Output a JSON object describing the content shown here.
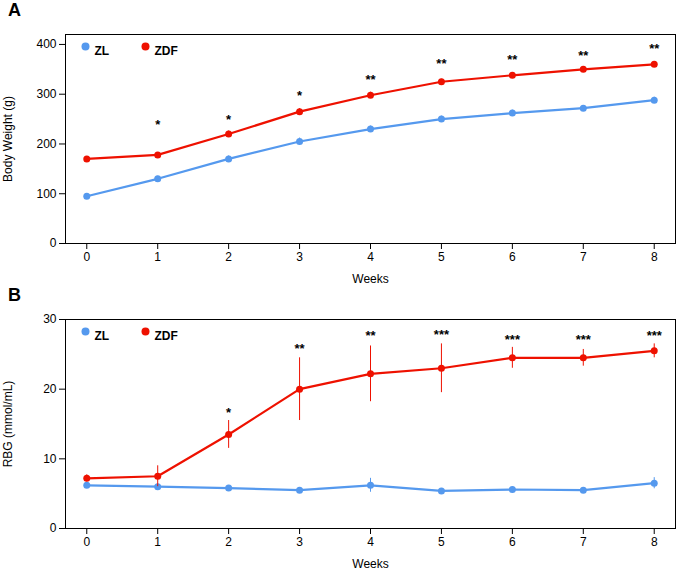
{
  "chart_data": [
    {
      "type": "line",
      "title": "A",
      "xlabel": "Weeks",
      "ylabel": "Body Weight (g)",
      "x": [
        0,
        1,
        2,
        3,
        4,
        5,
        6,
        7,
        8
      ],
      "series": [
        {
          "name": "ZL",
          "color": "#5599ee",
          "marker": "circle",
          "values": [
            95,
            130,
            170,
            205,
            230,
            250,
            262,
            272,
            288
          ],
          "errors": [
            4,
            5,
            6,
            7,
            6,
            6,
            6,
            5,
            6
          ]
        },
        {
          "name": "ZDF",
          "color": "#ee1100",
          "marker": "circle",
          "values": [
            170,
            178,
            220,
            265,
            298,
            325,
            338,
            350,
            360
          ],
          "errors": [
            4,
            4,
            6,
            6,
            6,
            5,
            5,
            5,
            5
          ]
        }
      ],
      "annotations": [
        {
          "x": 1,
          "y": 230,
          "text": "*"
        },
        {
          "x": 2,
          "y": 240,
          "text": "*"
        },
        {
          "x": 3,
          "y": 288,
          "text": "*"
        },
        {
          "x": 4,
          "y": 320,
          "text": "**"
        },
        {
          "x": 5,
          "y": 352,
          "text": "**"
        },
        {
          "x": 6,
          "y": 360,
          "text": "**"
        },
        {
          "x": 7,
          "y": 368,
          "text": "**"
        },
        {
          "x": 8,
          "y": 382,
          "text": "**"
        }
      ],
      "xlim": [
        -0.3,
        8.3
      ],
      "xticks": [
        0,
        1,
        2,
        3,
        4,
        5,
        6,
        7,
        8
      ],
      "ylim": [
        0,
        420
      ],
      "yticks": [
        0,
        100,
        200,
        300,
        400
      ],
      "legend": "upper left",
      "grid": false
    },
    {
      "type": "line",
      "title": "B",
      "xlabel": "Weeks",
      "ylabel": "RBG (mmol/mL)",
      "x": [
        0,
        1,
        2,
        3,
        4,
        5,
        6,
        7,
        8
      ],
      "series": [
        {
          "name": "ZL",
          "color": "#5599ee",
          "marker": "circle",
          "values": [
            6.2,
            6.0,
            5.8,
            5.5,
            6.2,
            5.4,
            5.6,
            5.5,
            6.5
          ],
          "errors": [
            0.3,
            0.3,
            0.3,
            0.3,
            1.0,
            0.3,
            0.3,
            0.3,
            0.8
          ]
        },
        {
          "name": "ZDF",
          "color": "#ee1100",
          "marker": "circle",
          "values": [
            7.2,
            7.5,
            13.5,
            20.0,
            22.2,
            23.0,
            24.5,
            24.5,
            25.5
          ],
          "errors": [
            0.5,
            1.5,
            2.0,
            4.5,
            4.0,
            3.5,
            1.5,
            1.2,
            1.0
          ]
        }
      ],
      "annotations": [
        {
          "x": 2,
          "y": 16.0,
          "text": "*"
        },
        {
          "x": 3,
          "y": 25.2,
          "text": "**"
        },
        {
          "x": 4,
          "y": 27.0,
          "text": "**"
        },
        {
          "x": 5,
          "y": 27.2,
          "text": "***"
        },
        {
          "x": 6,
          "y": 26.5,
          "text": "***"
        },
        {
          "x": 7,
          "y": 26.5,
          "text": "***"
        },
        {
          "x": 8,
          "y": 27.0,
          "text": "***"
        }
      ],
      "xlim": [
        -0.3,
        8.3
      ],
      "xticks": [
        0,
        1,
        2,
        3,
        4,
        5,
        6,
        7,
        8
      ],
      "ylim": [
        0,
        30
      ],
      "yticks": [
        0,
        10,
        20,
        30
      ],
      "legend": "upper left",
      "grid": false
    }
  ]
}
